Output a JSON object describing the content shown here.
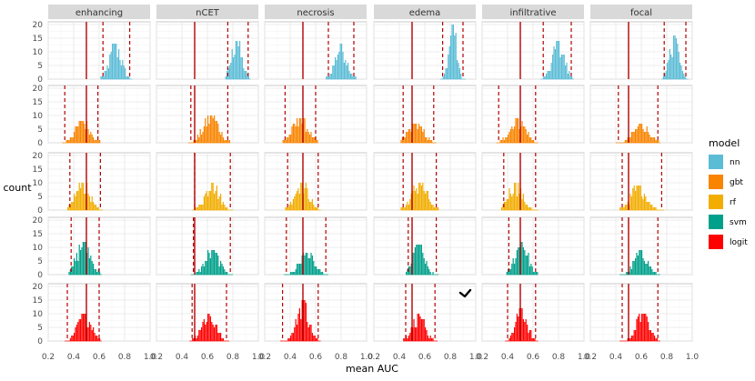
{
  "chart_data": {
    "type": "histogram-facet-grid",
    "xlabel": "mean AUC",
    "ylabel": "count",
    "xlim": [
      0.2,
      1.0
    ],
    "ylim": [
      0,
      21
    ],
    "xticks": [
      "0.2",
      "0.4",
      "0.6",
      "0.8",
      "1.0"
    ],
    "yticks": [
      "0",
      "5",
      "10",
      "15",
      "20"
    ],
    "columns": [
      "enhancing",
      "nCET",
      "necrosis",
      "edema",
      "infiltrative",
      "focal"
    ],
    "rows": [
      "nn",
      "gbt",
      "rf",
      "svm",
      "logit"
    ],
    "legend": {
      "title": "model",
      "position": "right",
      "items": [
        {
          "label": "nn",
          "color": "#5bbcd6"
        },
        {
          "label": "gbt",
          "color": "#f98400"
        },
        {
          "label": "rf",
          "color": "#f2ad00"
        },
        {
          "label": "svm",
          "color": "#00a08a"
        },
        {
          "label": "logit",
          "color": "#ff0000"
        }
      ]
    },
    "reference_line_auc": 0.5,
    "reference_line_color": "#b30000",
    "grid": true,
    "series": [
      {
        "model": "nn",
        "color": "#5bbcd6",
        "panels": [
          {
            "column": "enhancing",
            "center": 0.73,
            "spread": 0.045,
            "peak": 13,
            "ci": [
              0.63,
              0.84
            ]
          },
          {
            "column": "nCET",
            "center": 0.83,
            "spread": 0.04,
            "peak": 14,
            "ci": [
              0.76,
              0.92
            ]
          },
          {
            "column": "necrosis",
            "center": 0.8,
            "spread": 0.045,
            "peak": 13,
            "ci": [
              0.7,
              0.9
            ]
          },
          {
            "column": "edema",
            "center": 0.82,
            "spread": 0.03,
            "peak": 20,
            "ci": [
              0.74,
              0.9
            ]
          },
          {
            "column": "infiltrative",
            "center": 0.8,
            "spread": 0.045,
            "peak": 14,
            "ci": [
              0.68,
              0.9
            ]
          },
          {
            "column": "focal",
            "center": 0.86,
            "spread": 0.035,
            "peak": 16,
            "ci": [
              0.78,
              0.95
            ]
          }
        ]
      },
      {
        "model": "gbt",
        "color": "#f98400",
        "panels": [
          {
            "column": "enhancing",
            "center": 0.47,
            "spread": 0.06,
            "peak": 8,
            "ci": [
              0.33,
              0.59
            ]
          },
          {
            "column": "nCET",
            "center": 0.63,
            "spread": 0.06,
            "peak": 10,
            "ci": [
              0.47,
              0.76
            ]
          },
          {
            "column": "necrosis",
            "center": 0.48,
            "spread": 0.06,
            "peak": 9,
            "ci": [
              0.36,
              0.6
            ]
          },
          {
            "column": "edema",
            "center": 0.53,
            "spread": 0.06,
            "peak": 7,
            "ci": [
              0.43,
              0.67
            ]
          },
          {
            "column": "infiltrative",
            "center": 0.48,
            "spread": 0.06,
            "peak": 9,
            "ci": [
              0.33,
              0.62
            ]
          },
          {
            "column": "focal",
            "center": 0.6,
            "spread": 0.06,
            "peak": 7,
            "ci": [
              0.42,
              0.73
            ]
          }
        ]
      },
      {
        "model": "rf",
        "color": "#f2ad00",
        "panels": [
          {
            "column": "enhancing",
            "center": 0.47,
            "spread": 0.055,
            "peak": 10,
            "ci": [
              0.37,
              0.61
            ]
          },
          {
            "column": "nCET",
            "center": 0.64,
            "spread": 0.055,
            "peak": 10,
            "ci": [
              0.5,
              0.78
            ]
          },
          {
            "column": "necrosis",
            "center": 0.49,
            "spread": 0.055,
            "peak": 10,
            "ci": [
              0.38,
              0.62
            ]
          },
          {
            "column": "edema",
            "center": 0.56,
            "spread": 0.06,
            "peak": 10,
            "ci": [
              0.43,
              0.69
            ]
          },
          {
            "column": "infiltrative",
            "center": 0.46,
            "spread": 0.055,
            "peak": 10,
            "ci": [
              0.37,
              0.62
            ]
          },
          {
            "column": "focal",
            "center": 0.58,
            "spread": 0.06,
            "peak": 9,
            "ci": [
              0.45,
              0.76
            ]
          }
        ]
      },
      {
        "model": "svm",
        "color": "#00a08a",
        "panels": [
          {
            "column": "enhancing",
            "center": 0.48,
            "spread": 0.055,
            "peak": 12,
            "ci": [
              0.38,
              0.6
            ]
          },
          {
            "column": "nCET",
            "center": 0.64,
            "spread": 0.055,
            "peak": 9,
            "ci": [
              0.49,
              0.78
            ]
          },
          {
            "column": "necrosis",
            "center": 0.53,
            "spread": 0.055,
            "peak": 8,
            "ci": [
              0.37,
              0.68
            ]
          },
          {
            "column": "edema",
            "center": 0.55,
            "spread": 0.045,
            "peak": 11,
            "ci": [
              0.47,
              0.69
            ]
          },
          {
            "column": "infiltrative",
            "center": 0.51,
            "spread": 0.05,
            "peak": 12,
            "ci": [
              0.41,
              0.62
            ]
          },
          {
            "column": "focal",
            "center": 0.6,
            "spread": 0.05,
            "peak": 9,
            "ci": [
              0.45,
              0.73
            ]
          }
        ]
      },
      {
        "model": "logit",
        "color": "#ff0000",
        "panels": [
          {
            "column": "enhancing",
            "center": 0.49,
            "spread": 0.055,
            "peak": 10,
            "ci": [
              0.35,
              0.6
            ]
          },
          {
            "column": "nCET",
            "center": 0.61,
            "spread": 0.055,
            "peak": 10,
            "ci": [
              0.48,
              0.75
            ]
          },
          {
            "column": "necrosis",
            "center": 0.5,
            "spread": 0.045,
            "peak": 15,
            "ci": [
              0.34,
              0.62
            ]
          },
          {
            "column": "edema",
            "center": 0.55,
            "spread": 0.05,
            "peak": 10,
            "ci": [
              0.45,
              0.68
            ]
          },
          {
            "column": "infiltrative",
            "center": 0.51,
            "spread": 0.045,
            "peak": 12,
            "ci": [
              0.4,
              0.62
            ]
          },
          {
            "column": "focal",
            "center": 0.61,
            "spread": 0.05,
            "peak": 10,
            "ci": [
              0.45,
              0.73
            ]
          }
        ]
      }
    ]
  }
}
